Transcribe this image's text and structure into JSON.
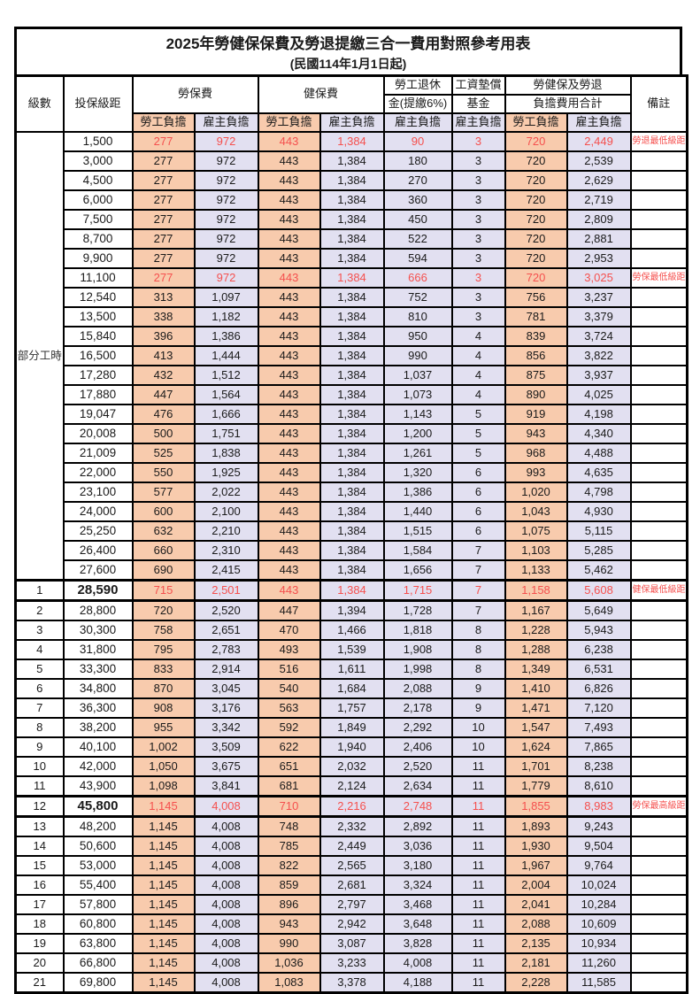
{
  "title": "2025年勞健保保費及勞退提繳三合一費用對照參考用表",
  "subtitle": "(民國114年1月1日起)",
  "columns": {
    "level": "級數",
    "bracket": "投保級距",
    "labor": "勞保費",
    "health": "健保費",
    "pension_l1": "勞工退休",
    "pension_l2": "金(提繳6%)",
    "wage_l1": "工資墊償",
    "wage_l2": "基金",
    "total_l1": "勞健保及勞退",
    "total_l2": "負擔費用合計",
    "remark": "備註",
    "employee": "勞工負擔",
    "employer": "雇主負擔"
  },
  "part_time_label": "部分工時",
  "colors": {
    "employee_fill": "#F8CBAD",
    "employer_fill": "#E2E0F1",
    "highlight_text": "#F5504E",
    "border": "#000000"
  },
  "rows": [
    {
      "level": "",
      "bracket": "1,500",
      "cells": [
        "277",
        "972",
        "443",
        "1,384",
        "90",
        "3",
        "720",
        "2,449"
      ],
      "remark": "勞退最低級距",
      "red": true,
      "big": false
    },
    {
      "level": "",
      "bracket": "3,000",
      "cells": [
        "277",
        "972",
        "443",
        "1,384",
        "180",
        "3",
        "720",
        "2,539"
      ],
      "remark": "",
      "red": false,
      "big": false
    },
    {
      "level": "",
      "bracket": "4,500",
      "cells": [
        "277",
        "972",
        "443",
        "1,384",
        "270",
        "3",
        "720",
        "2,629"
      ],
      "remark": "",
      "red": false,
      "big": false
    },
    {
      "level": "",
      "bracket": "6,000",
      "cells": [
        "277",
        "972",
        "443",
        "1,384",
        "360",
        "3",
        "720",
        "2,719"
      ],
      "remark": "",
      "red": false,
      "big": false
    },
    {
      "level": "",
      "bracket": "7,500",
      "cells": [
        "277",
        "972",
        "443",
        "1,384",
        "450",
        "3",
        "720",
        "2,809"
      ],
      "remark": "",
      "red": false,
      "big": false
    },
    {
      "level": "",
      "bracket": "8,700",
      "cells": [
        "277",
        "972",
        "443",
        "1,384",
        "522",
        "3",
        "720",
        "2,881"
      ],
      "remark": "",
      "red": false,
      "big": false
    },
    {
      "level": "",
      "bracket": "9,900",
      "cells": [
        "277",
        "972",
        "443",
        "1,384",
        "594",
        "3",
        "720",
        "2,953"
      ],
      "remark": "",
      "red": false,
      "big": false
    },
    {
      "level": "",
      "bracket": "11,100",
      "cells": [
        "277",
        "972",
        "443",
        "1,384",
        "666",
        "3",
        "720",
        "3,025"
      ],
      "remark": "勞保最低級距",
      "red": true,
      "big": false
    },
    {
      "level": "",
      "bracket": "12,540",
      "cells": [
        "313",
        "1,097",
        "443",
        "1,384",
        "752",
        "3",
        "756",
        "3,237"
      ],
      "remark": "",
      "red": false,
      "big": false
    },
    {
      "level": "",
      "bracket": "13,500",
      "cells": [
        "338",
        "1,182",
        "443",
        "1,384",
        "810",
        "3",
        "781",
        "3,379"
      ],
      "remark": "",
      "red": false,
      "big": false
    },
    {
      "level": "",
      "bracket": "15,840",
      "cells": [
        "396",
        "1,386",
        "443",
        "1,384",
        "950",
        "4",
        "839",
        "3,724"
      ],
      "remark": "",
      "red": false,
      "big": false
    },
    {
      "level": "",
      "bracket": "16,500",
      "cells": [
        "413",
        "1,444",
        "443",
        "1,384",
        "990",
        "4",
        "856",
        "3,822"
      ],
      "remark": "",
      "red": false,
      "big": false
    },
    {
      "level": "",
      "bracket": "17,280",
      "cells": [
        "432",
        "1,512",
        "443",
        "1,384",
        "1,037",
        "4",
        "875",
        "3,937"
      ],
      "remark": "",
      "red": false,
      "big": false
    },
    {
      "level": "",
      "bracket": "17,880",
      "cells": [
        "447",
        "1,564",
        "443",
        "1,384",
        "1,073",
        "4",
        "890",
        "4,025"
      ],
      "remark": "",
      "red": false,
      "big": false
    },
    {
      "level": "",
      "bracket": "19,047",
      "cells": [
        "476",
        "1,666",
        "443",
        "1,384",
        "1,143",
        "5",
        "919",
        "4,198"
      ],
      "remark": "",
      "red": false,
      "big": false
    },
    {
      "level": "",
      "bracket": "20,008",
      "cells": [
        "500",
        "1,751",
        "443",
        "1,384",
        "1,200",
        "5",
        "943",
        "4,340"
      ],
      "remark": "",
      "red": false,
      "big": false
    },
    {
      "level": "",
      "bracket": "21,009",
      "cells": [
        "525",
        "1,838",
        "443",
        "1,384",
        "1,261",
        "5",
        "968",
        "4,488"
      ],
      "remark": "",
      "red": false,
      "big": false
    },
    {
      "level": "",
      "bracket": "22,000",
      "cells": [
        "550",
        "1,925",
        "443",
        "1,384",
        "1,320",
        "6",
        "993",
        "4,635"
      ],
      "remark": "",
      "red": false,
      "big": false
    },
    {
      "level": "",
      "bracket": "23,100",
      "cells": [
        "577",
        "2,022",
        "443",
        "1,384",
        "1,386",
        "6",
        "1,020",
        "4,798"
      ],
      "remark": "",
      "red": false,
      "big": false
    },
    {
      "level": "",
      "bracket": "24,000",
      "cells": [
        "600",
        "2,100",
        "443",
        "1,384",
        "1,440",
        "6",
        "1,043",
        "4,930"
      ],
      "remark": "",
      "red": false,
      "big": false
    },
    {
      "level": "",
      "bracket": "25,250",
      "cells": [
        "632",
        "2,210",
        "443",
        "1,384",
        "1,515",
        "6",
        "1,075",
        "5,115"
      ],
      "remark": "",
      "red": false,
      "big": false
    },
    {
      "level": "",
      "bracket": "26,400",
      "cells": [
        "660",
        "2,310",
        "443",
        "1,384",
        "1,584",
        "7",
        "1,103",
        "5,285"
      ],
      "remark": "",
      "red": false,
      "big": false
    },
    {
      "level": "",
      "bracket": "27,600",
      "cells": [
        "690",
        "2,415",
        "443",
        "1,384",
        "1,656",
        "7",
        "1,133",
        "5,462"
      ],
      "remark": "",
      "red": false,
      "big": false
    },
    {
      "level": "1",
      "bracket": "28,590",
      "cells": [
        "715",
        "2,501",
        "443",
        "1,384",
        "1,715",
        "7",
        "1,158",
        "5,608"
      ],
      "remark": "健保最低級距",
      "red": true,
      "big": true
    },
    {
      "level": "2",
      "bracket": "28,800",
      "cells": [
        "720",
        "2,520",
        "447",
        "1,394",
        "1,728",
        "7",
        "1,167",
        "5,649"
      ],
      "remark": "",
      "red": false,
      "big": false
    },
    {
      "level": "3",
      "bracket": "30,300",
      "cells": [
        "758",
        "2,651",
        "470",
        "1,466",
        "1,818",
        "8",
        "1,228",
        "5,943"
      ],
      "remark": "",
      "red": false,
      "big": false
    },
    {
      "level": "4",
      "bracket": "31,800",
      "cells": [
        "795",
        "2,783",
        "493",
        "1,539",
        "1,908",
        "8",
        "1,288",
        "6,238"
      ],
      "remark": "",
      "red": false,
      "big": false
    },
    {
      "level": "5",
      "bracket": "33,300",
      "cells": [
        "833",
        "2,914",
        "516",
        "1,611",
        "1,998",
        "8",
        "1,349",
        "6,531"
      ],
      "remark": "",
      "red": false,
      "big": false
    },
    {
      "level": "6",
      "bracket": "34,800",
      "cells": [
        "870",
        "3,045",
        "540",
        "1,684",
        "2,088",
        "9",
        "1,410",
        "6,826"
      ],
      "remark": "",
      "red": false,
      "big": false
    },
    {
      "level": "7",
      "bracket": "36,300",
      "cells": [
        "908",
        "3,176",
        "563",
        "1,757",
        "2,178",
        "9",
        "1,471",
        "7,120"
      ],
      "remark": "",
      "red": false,
      "big": false
    },
    {
      "level": "8",
      "bracket": "38,200",
      "cells": [
        "955",
        "3,342",
        "592",
        "1,849",
        "2,292",
        "10",
        "1,547",
        "7,493"
      ],
      "remark": "",
      "red": false,
      "big": false
    },
    {
      "level": "9",
      "bracket": "40,100",
      "cells": [
        "1,002",
        "3,509",
        "622",
        "1,940",
        "2,406",
        "10",
        "1,624",
        "7,865"
      ],
      "remark": "",
      "red": false,
      "big": false
    },
    {
      "level": "10",
      "bracket": "42,000",
      "cells": [
        "1,050",
        "3,675",
        "651",
        "2,032",
        "2,520",
        "11",
        "1,701",
        "8,238"
      ],
      "remark": "",
      "red": false,
      "big": false
    },
    {
      "level": "11",
      "bracket": "43,900",
      "cells": [
        "1,098",
        "3,841",
        "681",
        "2,124",
        "2,634",
        "11",
        "1,779",
        "8,610"
      ],
      "remark": "",
      "red": false,
      "big": false
    },
    {
      "level": "12",
      "bracket": "45,800",
      "cells": [
        "1,145",
        "4,008",
        "710",
        "2,216",
        "2,748",
        "11",
        "1,855",
        "8,983"
      ],
      "remark": "勞保最高級距",
      "red": true,
      "big": true
    },
    {
      "level": "13",
      "bracket": "48,200",
      "cells": [
        "1,145",
        "4,008",
        "748",
        "2,332",
        "2,892",
        "11",
        "1,893",
        "9,243"
      ],
      "remark": "",
      "red": false,
      "big": false
    },
    {
      "level": "14",
      "bracket": "50,600",
      "cells": [
        "1,145",
        "4,008",
        "785",
        "2,449",
        "3,036",
        "11",
        "1,930",
        "9,504"
      ],
      "remark": "",
      "red": false,
      "big": false
    },
    {
      "level": "15",
      "bracket": "53,000",
      "cells": [
        "1,145",
        "4,008",
        "822",
        "2,565",
        "3,180",
        "11",
        "1,967",
        "9,764"
      ],
      "remark": "",
      "red": false,
      "big": false
    },
    {
      "level": "16",
      "bracket": "55,400",
      "cells": [
        "1,145",
        "4,008",
        "859",
        "2,681",
        "3,324",
        "11",
        "2,004",
        "10,024"
      ],
      "remark": "",
      "red": false,
      "big": false
    },
    {
      "level": "17",
      "bracket": "57,800",
      "cells": [
        "1,145",
        "4,008",
        "896",
        "2,797",
        "3,468",
        "11",
        "2,041",
        "10,284"
      ],
      "remark": "",
      "red": false,
      "big": false
    },
    {
      "level": "18",
      "bracket": "60,800",
      "cells": [
        "1,145",
        "4,008",
        "943",
        "2,942",
        "3,648",
        "11",
        "2,088",
        "10,609"
      ],
      "remark": "",
      "red": false,
      "big": false
    },
    {
      "level": "19",
      "bracket": "63,800",
      "cells": [
        "1,145",
        "4,008",
        "990",
        "3,087",
        "3,828",
        "11",
        "2,135",
        "10,934"
      ],
      "remark": "",
      "red": false,
      "big": false
    },
    {
      "level": "20",
      "bracket": "66,800",
      "cells": [
        "1,145",
        "4,008",
        "1,036",
        "3,233",
        "4,008",
        "11",
        "2,181",
        "11,260"
      ],
      "remark": "",
      "red": false,
      "big": false
    },
    {
      "level": "21",
      "bracket": "69,800",
      "cells": [
        "1,145",
        "4,008",
        "1,083",
        "3,378",
        "4,188",
        "11",
        "2,228",
        "11,585"
      ],
      "remark": "",
      "red": false,
      "big": false
    }
  ]
}
